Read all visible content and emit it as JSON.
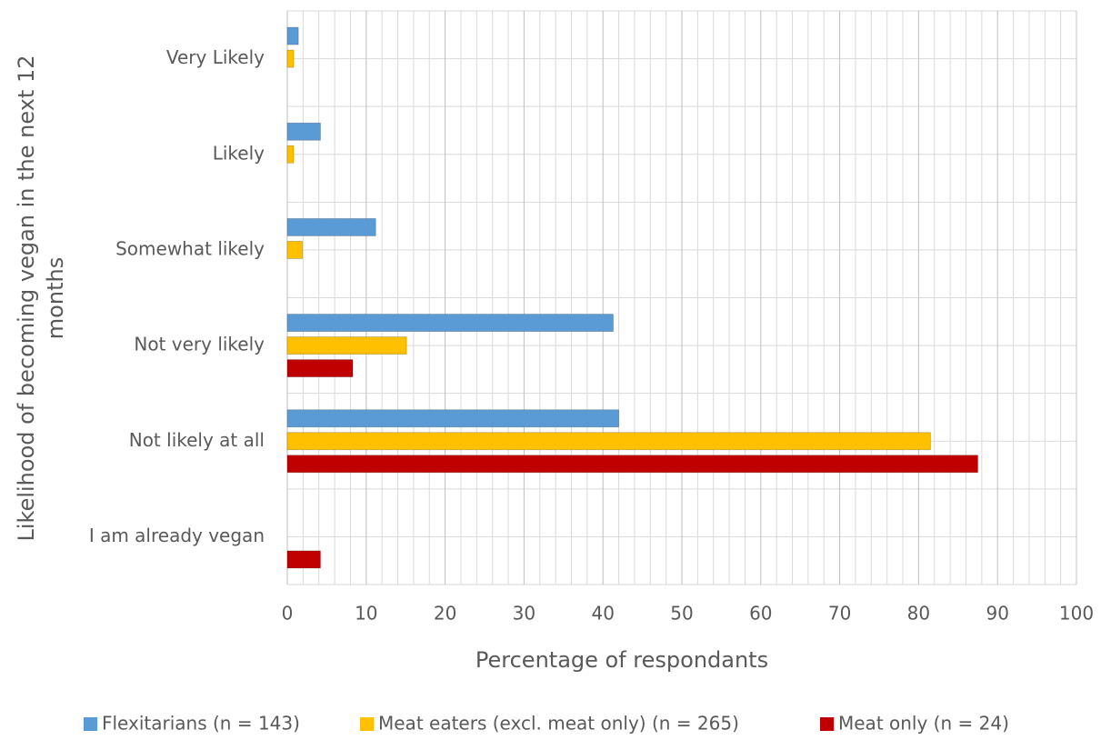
{
  "chart_data": {
    "type": "hbar",
    "categories": [
      "Very Likely",
      "Likely",
      "Somewhat likely",
      "Not very likely",
      "Not likely at all",
      "I am already vegan"
    ],
    "series": [
      {
        "name": "Flexitarians (n = 143)",
        "color": "#5b9bd5",
        "values": [
          1.4,
          4.2,
          11.2,
          41.3,
          42,
          0
        ]
      },
      {
        "name": "Meat eaters (excl. meat only) (n = 265)",
        "color": "#ffc000",
        "values": [
          0.8,
          0.8,
          1.9,
          15.1,
          81.5,
          0
        ]
      },
      {
        "name": "Meat only (n = 24)",
        "color": "#c00000",
        "values": [
          0,
          0,
          0,
          8.3,
          87.5,
          4.2
        ]
      }
    ],
    "xlabel": "Percentage of respondants",
    "ylabel": [
      "Likelihood of becoming vegan in the next 12",
      "months"
    ],
    "xlim": [
      0,
      100
    ],
    "xticks": [
      0,
      10,
      20,
      30,
      40,
      50,
      60,
      70,
      80,
      90,
      100
    ],
    "grid": true,
    "legend": "bottom"
  }
}
